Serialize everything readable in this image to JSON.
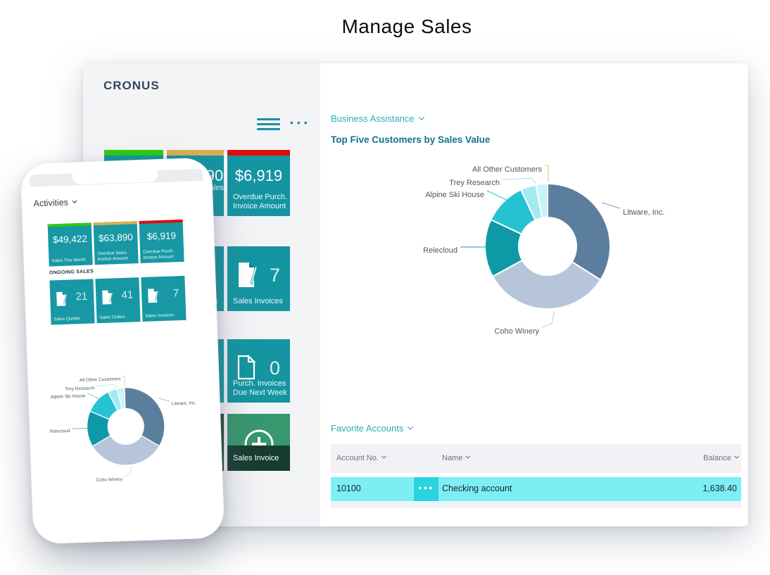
{
  "page": {
    "title": "Manage Sales"
  },
  "desktop": {
    "company": "CRONUS",
    "kpi_tiles": [
      {
        "value": "$49,422",
        "label_line1": "Sales This Month",
        "label_line2": "",
        "bar_color": "#2fca11"
      },
      {
        "value": "$63,890",
        "label_line1": "Overdue Sales",
        "label_line2": "Invoice Amount",
        "bar_color": "#d9b052"
      },
      {
        "value": "$6,919",
        "label_line1": "Overdue Purch.",
        "label_line2": "Invoice Amount",
        "bar_color": "#e30b0b"
      }
    ],
    "doc_tiles": [
      {
        "count": "21",
        "label": "Sales Quotes"
      },
      {
        "count": "41",
        "label": "Sales Orders"
      },
      {
        "count": "7",
        "label": "Sales Invoices"
      },
      {
        "count": "0",
        "label_line1": "Purch. Invoices",
        "label_line2": "Due Next Week"
      }
    ],
    "action_tile": {
      "label": "Sales Invoice"
    },
    "assistance_label": "Business Assistance",
    "chart_heading": "Top Five Customers by Sales Value",
    "favorites": {
      "label": "Favorite Accounts",
      "columns": [
        "Account No.",
        "Name",
        "Balance"
      ],
      "rows": [
        {
          "account_no": "10100",
          "ellipsis": "●●●",
          "name": "Checking account",
          "balance": "1,638.40"
        }
      ]
    }
  },
  "phone": {
    "activities_label": "Activities",
    "ongoing_sales_label": "ONGOING SALES",
    "kpi_tiles": [
      {
        "value": "$49,422",
        "label_line1": "Sales This Month",
        "label_line2": "",
        "bar_color": "#2fca11"
      },
      {
        "value": "$63,890",
        "label_line1": "Overdue Sales",
        "label_line2": "Invoice Amount",
        "bar_color": "#d9b052"
      },
      {
        "value": "$6,919",
        "label_line1": "Overdue Purch.",
        "label_line2": "Invoice Amount",
        "bar_color": "#e30b0b"
      }
    ],
    "count_tiles": [
      {
        "count": "21",
        "label": "Sales Quotes"
      },
      {
        "count": "41",
        "label": "Sales Orders"
      },
      {
        "count": "7",
        "label": "Sales Invoices"
      }
    ]
  },
  "chart_data": {
    "type": "pie",
    "subtype": "donut",
    "title": "Top Five Customers by Sales Value",
    "unit": "percent (estimated from slice angles)",
    "series": [
      {
        "label": "Litware, Inc.",
        "value": 34,
        "color": "#5b7e9e",
        "leader_color": "#8a9aab"
      },
      {
        "label": "Coho Winery",
        "value": 33,
        "color": "#b7c5da",
        "leader_color": "#c5cfdc"
      },
      {
        "label": "Relecloud",
        "value": 15,
        "color": "#0e99a7",
        "leader_color": "#14a1af"
      },
      {
        "label": "Alpine Ski House",
        "value": 11,
        "color": "#26c3d3",
        "leader_color": "#28c4d3"
      },
      {
        "label": "Trey Research",
        "value": 4,
        "color": "#a3eaf1",
        "leader_color": "#9ce4ec"
      },
      {
        "label": "All Other Customers",
        "value": 3,
        "color": "#c9f3f7",
        "leader_color": "#c9ca84"
      }
    ],
    "legend_position": "callout-labels",
    "instances": [
      "desktop-right-pane",
      "phone-screen"
    ]
  }
}
